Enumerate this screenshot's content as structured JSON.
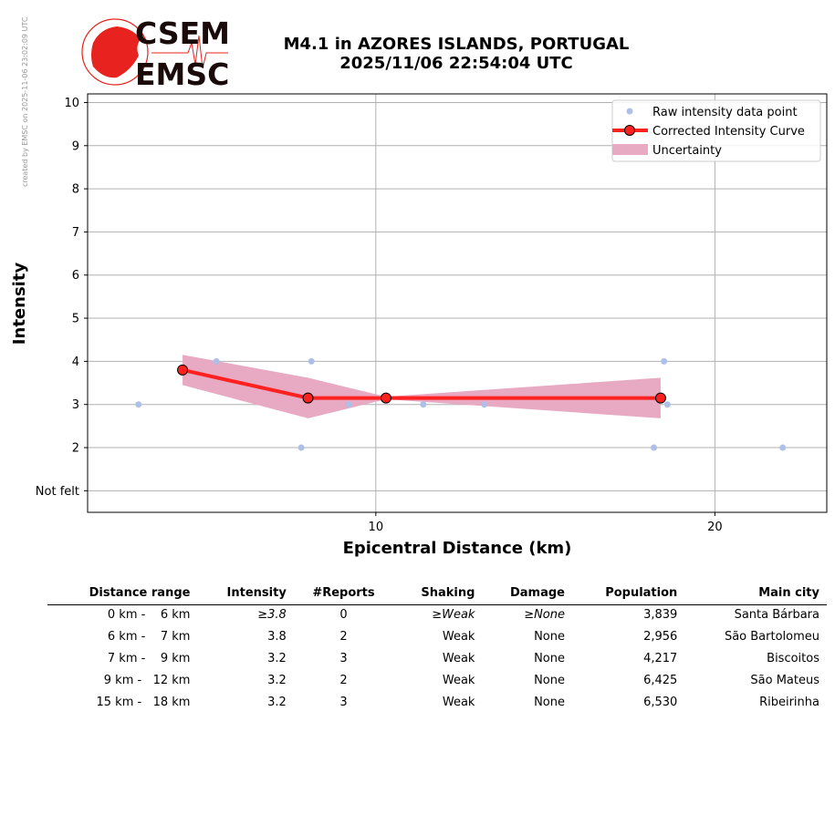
{
  "header": {
    "side_note": "created by EMSC on 2025-11-06 23:02:09 UTC",
    "logo_text_top": "CSEM",
    "logo_text_bottom": "EMSC",
    "title_line1": "M4.1 in AZORES ISLANDS, PORTUGAL",
    "title_line2": "2025/11/06 22:54:04 UTC"
  },
  "colors": {
    "raw_points": "#aebfe8",
    "curve": "#ff2020",
    "uncertainty": "#e8a9c3",
    "logo_red": "#e8231f",
    "logo_dark": "#1a0a0a"
  },
  "chart_data": {
    "type": "line",
    "xlabel": "Epicentral Distance (km)",
    "ylabel": "Intensity",
    "xlim": [
      1.5,
      23.3
    ],
    "ylim": [
      0.5,
      10.2
    ],
    "x_ticks": [
      10,
      20
    ],
    "y_ticks": [
      {
        "value": 1,
        "label": "Not felt"
      },
      {
        "value": 2,
        "label": "2"
      },
      {
        "value": 3,
        "label": "3"
      },
      {
        "value": 4,
        "label": "4"
      },
      {
        "value": 5,
        "label": "5"
      },
      {
        "value": 6,
        "label": "6"
      },
      {
        "value": 7,
        "label": "7"
      },
      {
        "value": 8,
        "label": "8"
      },
      {
        "value": 9,
        "label": "9"
      },
      {
        "value": 10,
        "label": "10"
      }
    ],
    "grid": true,
    "legend_position": "top-right",
    "raw_points": [
      {
        "x": 3.0,
        "y": 3
      },
      {
        "x": 5.3,
        "y": 4
      },
      {
        "x": 7.8,
        "y": 2
      },
      {
        "x": 8.1,
        "y": 4
      },
      {
        "x": 9.2,
        "y": 3
      },
      {
        "x": 11.4,
        "y": 3
      },
      {
        "x": 13.2,
        "y": 3
      },
      {
        "x": 18.2,
        "y": 2
      },
      {
        "x": 18.5,
        "y": 4
      },
      {
        "x": 18.6,
        "y": 3
      },
      {
        "x": 22.0,
        "y": 2
      }
    ],
    "curve": {
      "x": [
        4.3,
        8.0,
        10.3,
        18.4
      ],
      "y": [
        3.8,
        3.15,
        3.15,
        3.15
      ]
    },
    "uncertainty": {
      "x": [
        4.3,
        8.0,
        10.3,
        18.4
      ],
      "lower": [
        3.45,
        2.68,
        3.12,
        2.68
      ],
      "upper": [
        4.15,
        3.62,
        3.18,
        3.62
      ]
    },
    "legend": [
      {
        "name": "Raw intensity data point"
      },
      {
        "name": "Corrected Intensity Curve"
      },
      {
        "name": "Uncertainty"
      }
    ]
  },
  "table": {
    "headers": [
      "Distance range",
      "Intensity",
      "#Reports",
      "Shaking",
      "Damage",
      "Population",
      "Main city"
    ],
    "rows": [
      {
        "range": "0 km -    6 km",
        "intensity": "≥3.8",
        "reports": "0",
        "shaking": "≥Weak",
        "damage": "≥None",
        "population": "3,839",
        "city": "Santa Bárbara"
      },
      {
        "range": "6 km -    7 km",
        "intensity": "3.8",
        "reports": "2",
        "shaking": "Weak",
        "damage": "None",
        "population": "2,956",
        "city": "São Bartolomeu"
      },
      {
        "range": "7 km -    9 km",
        "intensity": "3.2",
        "reports": "3",
        "shaking": "Weak",
        "damage": "None",
        "population": "4,217",
        "city": "Biscoitos"
      },
      {
        "range": "9 km -   12 km",
        "intensity": "3.2",
        "reports": "2",
        "shaking": "Weak",
        "damage": "None",
        "population": "6,425",
        "city": "São Mateus"
      },
      {
        "range": "15 km -   18 km",
        "intensity": "3.2",
        "reports": "3",
        "shaking": "Weak",
        "damage": "None",
        "population": "6,530",
        "city": "Ribeirinha"
      }
    ]
  }
}
